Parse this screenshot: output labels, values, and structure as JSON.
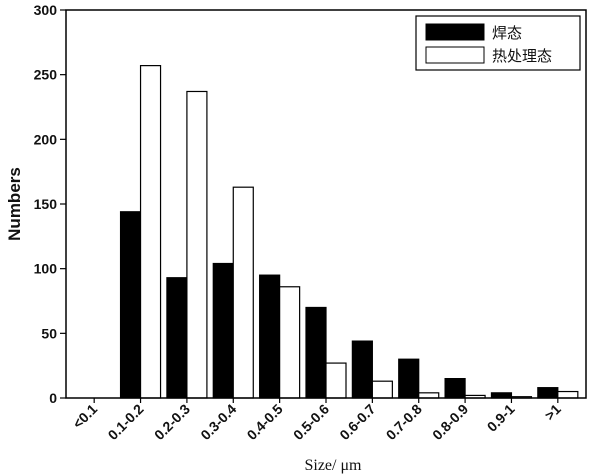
{
  "chart_data": {
    "type": "bar",
    "categories": [
      "<0.1",
      "0.1-0.2",
      "0.2-0.3",
      "0.3-0.4",
      "0.4-0.5",
      "0.5-0.6",
      "0.6-0.7",
      "0.7-0.8",
      "0.8-0.9",
      "0.9-1",
      ">1"
    ],
    "series": [
      {
        "name": "焊态",
        "values": [
          0,
          144,
          93,
          104,
          95,
          70,
          44,
          30,
          15,
          4,
          8
        ]
      },
      {
        "name": "热处理态",
        "values": [
          0,
          257,
          237,
          163,
          86,
          27,
          13,
          4,
          2,
          1,
          5
        ]
      }
    ],
    "xlabel": "Size/ μm",
    "ylabel": "Numbers",
    "ylim": [
      0,
      300
    ],
    "yticks": [
      0,
      50,
      100,
      150,
      200,
      250,
      300
    ],
    "legend_position": "top-right",
    "grid": false,
    "colors": {
      "series_0_fill": "#000000",
      "series_1_fill": "#ffffff",
      "stroke": "#000000"
    }
  }
}
